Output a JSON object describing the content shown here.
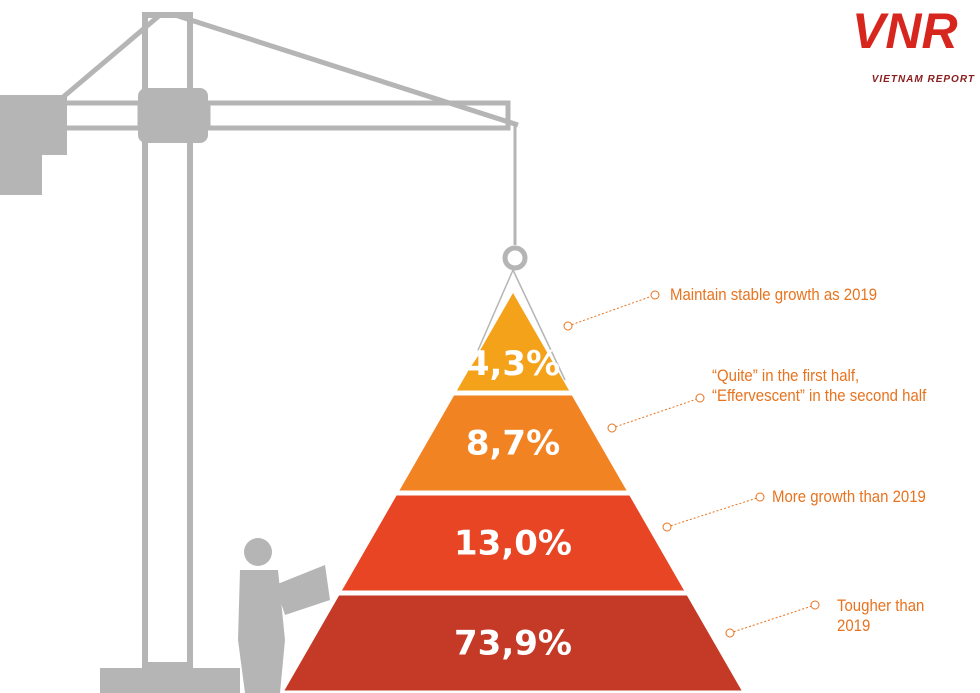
{
  "chart_data": {
    "type": "pyramid",
    "categories": [
      "Maintain stable growth as 2019",
      "“Quite” in the first half,\n“Effervescent” in the second half",
      "More growth than 2019",
      "Tougher than\n2019"
    ],
    "values": [
      4.3,
      8.7,
      13.0,
      73.9
    ],
    "value_labels": [
      "4,3%",
      "8,7%",
      "13,0%",
      "73,9%"
    ],
    "colors": [
      "#f5a21b",
      "#f28322",
      "#e84525",
      "#c53a26"
    ]
  },
  "logo": {
    "mark": "VNR",
    "tagline": "VIETNAM REPORT"
  }
}
